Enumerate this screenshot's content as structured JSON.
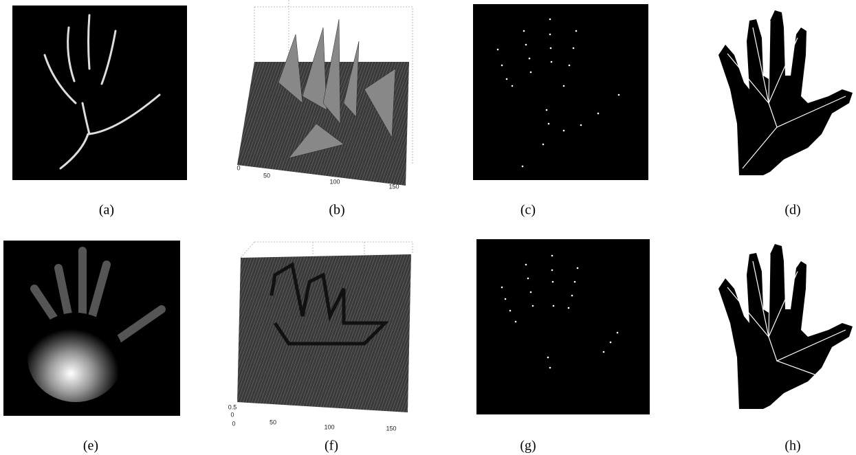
{
  "panels": [
    {
      "label": "(a)"
    },
    {
      "label": "(b)",
      "ticks": [
        "0",
        "50",
        "100",
        "150"
      ]
    },
    {
      "label": "(c)"
    },
    {
      "label": "(d)"
    },
    {
      "label": "(e)"
    },
    {
      "label": "(f)",
      "ticks": [
        "0.5",
        "0",
        "0",
        "50",
        "100",
        "150"
      ]
    },
    {
      "label": "(g)"
    },
    {
      "label": "(h)"
    }
  ]
}
